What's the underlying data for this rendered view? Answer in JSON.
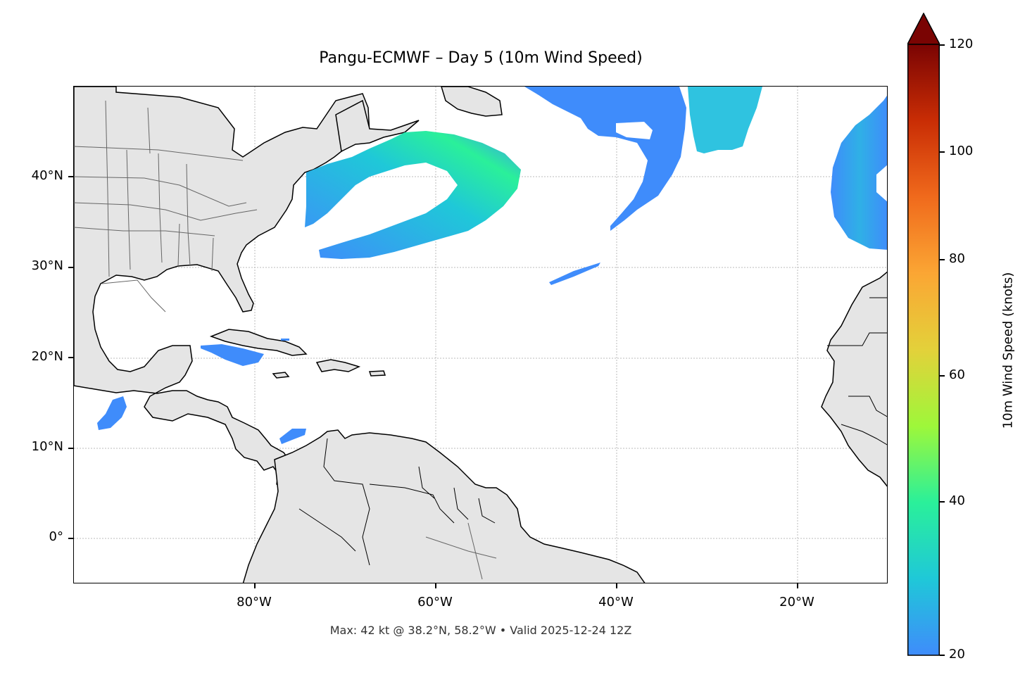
{
  "title": "Pangu-ECMWF – Day 5 (10m Wind Speed)",
  "caption": "Max: 42 kt @ 38.2°N, 58.2°W • Valid 2025-12-24 12Z",
  "map": {
    "lat_labels": [
      "40°N",
      "30°N",
      "20°N",
      "10°N",
      "0°"
    ],
    "lon_labels": [
      "80°W",
      "60°W",
      "40°W",
      "20°W"
    ],
    "land_color": "#e5e5e5",
    "coast_color": "#000000",
    "border_color": "#666666",
    "grid_color": "#bbbbbb"
  },
  "colorbar": {
    "label": "10m Wind Speed (knots)",
    "ticks": [
      "120",
      "100",
      "80",
      "60",
      "40",
      "20"
    ],
    "min": 20,
    "max": 120,
    "extend": "max",
    "colors": [
      "#3f8cfb",
      "#1fc8d8",
      "#2af09a",
      "#9ef73a",
      "#e3d13a",
      "#fba634",
      "#f06a1c",
      "#c92d05",
      "#7a0403"
    ]
  }
}
